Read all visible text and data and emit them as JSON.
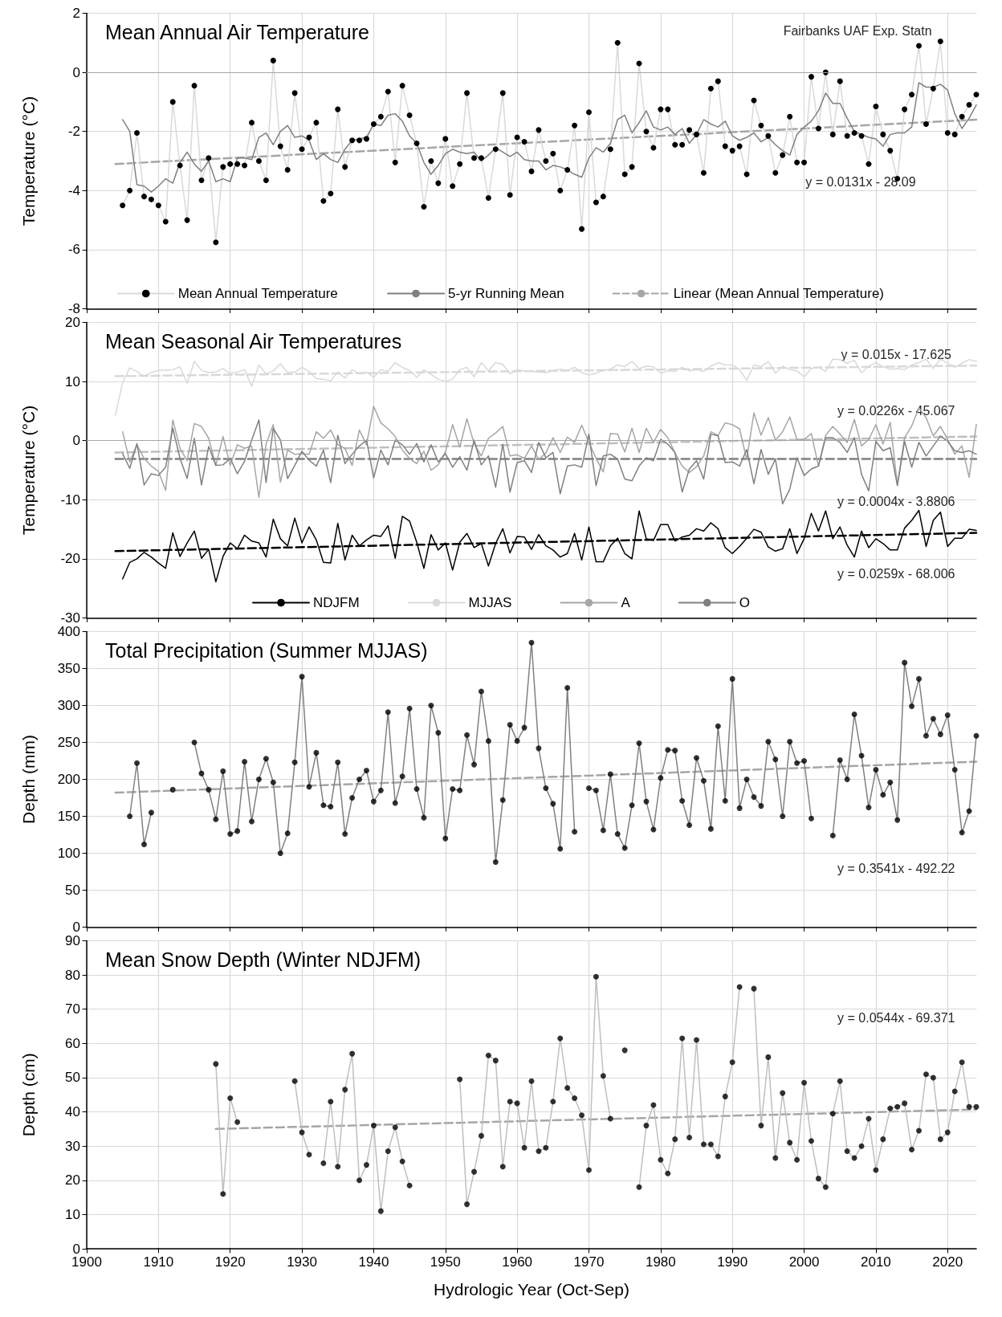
{
  "chart_data": [
    {
      "type": "line",
      "title": "Mean Annual Air Temperature",
      "ylabel": "Temperature (°C)",
      "xlim": [
        1900,
        2024
      ],
      "xticks": [
        1900,
        1910,
        1920,
        1930,
        1940,
        1950,
        1960,
        1970,
        1980,
        1990,
        2000,
        2010,
        2020
      ],
      "ylim": [
        -8,
        2
      ],
      "yticks": [
        -8,
        -6,
        -4,
        -2,
        0,
        2
      ],
      "grid": true,
      "tick_labels": "y",
      "legend": "bottom",
      "marker": "circle",
      "ref_lines": [
        {
          "axis": "y",
          "value": 0,
          "color": "#a6a6a6"
        }
      ],
      "annotations": [
        "Fairbanks UAF Exp. Statn",
        "y = 0.0131x - 28.09"
      ],
      "x": [
        1905,
        1906,
        1907,
        1908,
        1909,
        1910,
        1911,
        1912,
        1913,
        1914,
        1915,
        1916,
        1917,
        1918,
        1919,
        1920,
        1921,
        1922,
        1923,
        1924,
        1925,
        1926,
        1927,
        1928,
        1929,
        1930,
        1931,
        1932,
        1933,
        1934,
        1935,
        1936,
        1937,
        1938,
        1939,
        1940,
        1941,
        1942,
        1943,
        1944,
        1945,
        1946,
        1947,
        1948,
        1949,
        1950,
        1951,
        1952,
        1953,
        1954,
        1955,
        1956,
        1957,
        1958,
        1959,
        1960,
        1961,
        1962,
        1963,
        1964,
        1965,
        1966,
        1967,
        1968,
        1969,
        1970,
        1971,
        1972,
        1973,
        1974,
        1975,
        1976,
        1977,
        1978,
        1979,
        1980,
        1981,
        1982,
        1983,
        1984,
        1985,
        1986,
        1987,
        1988,
        1989,
        1990,
        1991,
        1992,
        1993,
        1994,
        1995,
        1996,
        1997,
        1998,
        1999,
        2000,
        2001,
        2002,
        2003,
        2004,
        2005,
        2006,
        2007,
        2008,
        2009,
        2010,
        2011,
        2012,
        2013,
        2014,
        2015,
        2016,
        2017,
        2018,
        2019,
        2020,
        2021,
        2022,
        2023,
        2024
      ],
      "series": [
        {
          "name": "Mean Annual Temperature",
          "color": "#d9d9d9",
          "values": [
            -4.5,
            -4.0,
            -2.05,
            -4.2,
            -4.3,
            -4.5,
            -5.05,
            -1.0,
            -3.15,
            -5.0,
            -0.45,
            -3.65,
            -2.9,
            -5.75,
            -3.2,
            -3.1,
            -3.1,
            -3.15,
            -1.7,
            -3.0,
            -3.65,
            0.4,
            -2.5,
            -3.3,
            -0.7,
            -2.6,
            -2.2,
            -1.7,
            -4.35,
            -4.1,
            -1.25,
            -3.2,
            -2.3,
            -2.3,
            -2.25,
            -1.75,
            -1.5,
            -0.65,
            -3.05,
            -0.45,
            -1.45,
            -2.4,
            -4.55,
            -3.0,
            -3.75,
            -2.25,
            -3.85,
            -3.1,
            -0.7,
            -2.9,
            -2.9,
            -4.25,
            -2.6,
            -0.7,
            -4.15,
            -2.2,
            -2.35,
            -3.35,
            -1.95,
            -3.0,
            -2.75,
            -4.0,
            -3.3,
            -1.8,
            -5.3,
            -1.35,
            -4.4,
            -4.2,
            -2.6,
            1.0,
            -3.45,
            -3.2,
            0.3,
            -2.0,
            -2.55,
            -1.25,
            -1.25,
            -2.45,
            -2.45,
            -1.95,
            -2.1,
            -3.4,
            -0.55,
            -0.3,
            -2.5,
            -2.65,
            -2.5,
            -3.45,
            -0.95,
            -1.8,
            -2.15,
            -3.4,
            -2.8,
            -1.5,
            -3.05,
            -3.05,
            -0.15,
            -1.9,
            0.0,
            -2.1,
            -0.3,
            -2.15,
            -2.05,
            -2.15,
            -3.1,
            -1.15,
            -2.1,
            -2.65,
            -3.6,
            -1.25,
            -0.75,
            0.9,
            -1.75,
            -0.55,
            1.05,
            -2.05,
            -2.1,
            -1.5,
            -1.1,
            -0.75
          ]
        },
        {
          "name": "5-yr Running Mean",
          "color": "#808080",
          "marker": "none",
          "values": [
            -1.6,
            -2.0,
            -3.8,
            -3.85,
            -4.05,
            -3.85,
            -3.6,
            -3.75,
            -3.05,
            -2.7,
            -3.1,
            -3.35,
            -3.0,
            -3.7,
            -3.6,
            -3.7,
            -2.9,
            -2.9,
            -2.95,
            -2.2,
            -2.05,
            -2.45,
            -2.0,
            -1.8,
            -2.2,
            -2.15,
            -2.3,
            -2.95,
            -2.75,
            -2.95,
            -3.05,
            -2.6,
            -2.3,
            -2.25,
            -2.2,
            -1.75,
            -1.8,
            -1.45,
            -1.4,
            -1.65,
            -2.15,
            -2.4,
            -3.05,
            -3.45,
            -3.15,
            -2.75,
            -2.6,
            -2.7,
            -2.75,
            -2.7,
            -3.0,
            -2.8,
            -2.55,
            -2.7,
            -2.85,
            -2.7,
            -2.95,
            -3.0,
            -3.0,
            -3.3,
            -3.15,
            -3.2,
            -3.3,
            -3.45,
            -3.55,
            -2.9,
            -2.55,
            -2.7,
            -2.4,
            -1.6,
            -1.45,
            -2.05,
            -1.7,
            -1.3,
            -1.85,
            -1.95,
            -1.85,
            -2.1,
            -1.9,
            -2.4,
            -2.1,
            -1.6,
            -1.75,
            -1.85,
            -1.65,
            -2.15,
            -2.3,
            -2.2,
            -2.05,
            -2.35,
            -2.2,
            -2.45,
            -2.65,
            -2.8,
            -2.1,
            -1.85,
            -1.65,
            -1.3,
            -0.7,
            -1.05,
            -1.05,
            -1.55,
            -2.0,
            -2.1,
            -2.2,
            -2.25,
            -2.5,
            -2.1,
            -2.05,
            -2.05,
            -1.85,
            -0.35,
            -0.5,
            -0.5,
            -0.4,
            -0.6,
            -1.4,
            -1.9,
            -1.55,
            -1.1
          ]
        },
        {
          "name": "Linear (Mean Annual Temperature)",
          "color": "#a6a6a6",
          "marker": "none",
          "line_style": "dashed",
          "x": [
            1904,
            2024
          ],
          "values": [
            -3.1,
            -1.6
          ]
        }
      ]
    },
    {
      "type": "line",
      "title": "Mean Seasonal Air Temperatures",
      "ylabel": "Temperature (°C)",
      "xlim": [
        1900,
        2024
      ],
      "xticks": [
        1900,
        1910,
        1920,
        1930,
        1940,
        1950,
        1960,
        1970,
        1980,
        1990,
        2000,
        2010,
        2020
      ],
      "ylim": [
        -30,
        20
      ],
      "yticks": [
        -30,
        -20,
        -10,
        0,
        10,
        20
      ],
      "grid": true,
      "tick_labels": "y",
      "legend": "bottom",
      "ref_lines": [
        {
          "axis": "y",
          "value": 0,
          "color": "#a6a6a6"
        }
      ],
      "annotations": [
        "y = 0.015x - 17.625",
        "y = 0.0226x - 45.067",
        "y = 0.0004x - 3.8806",
        "y = 0.0259x - 68.006"
      ],
      "x": [
        1904,
        1905,
        1906,
        1907,
        1908,
        1909,
        1910,
        1911,
        1912,
        1913,
        1914,
        1915,
        1916,
        1917,
        1918,
        1919,
        1920,
        1921,
        1922,
        1923,
        1924,
        1925,
        1926,
        1927,
        1928,
        1929,
        1930,
        1931,
        1932,
        1933,
        1934,
        1935,
        1936,
        1937,
        1938,
        1939,
        1940,
        1941,
        1942,
        1943,
        1944,
        1945,
        1946,
        1947,
        1948,
        1949,
        1950,
        1951,
        1952,
        1953,
        1954,
        1955,
        1956,
        1957,
        1958,
        1959,
        1960,
        1961,
        1962,
        1963,
        1964,
        1965,
        1966,
        1967,
        1968,
        1969,
        1970,
        1971,
        1972,
        1973,
        1974,
        1975,
        1976,
        1977,
        1978,
        1979,
        1980,
        1981,
        1982,
        1983,
        1984,
        1985,
        1986,
        1987,
        1988,
        1989,
        1990,
        1991,
        1992,
        1993,
        1994,
        1995,
        1996,
        1997,
        1998,
        1999,
        2000,
        2001,
        2002,
        2003,
        2004,
        2005,
        2006,
        2007,
        2008,
        2009,
        2010,
        2011,
        2012,
        2013,
        2014,
        2015,
        2016,
        2017,
        2018,
        2019,
        2020,
        2021,
        2022,
        2023,
        2024
      ],
      "series": [
        {
          "name": "NDJFM",
          "color": "#000000",
          "values": [
            null,
            -23.4,
            -20.6,
            -20.0,
            -18.9,
            -19.7,
            -20.7,
            -21.6,
            -15.6,
            -19.6,
            -17.3,
            -15.3,
            -19.9,
            -18.4,
            -23.9,
            -19.6,
            -17.3,
            -18.3,
            -16.0,
            -17.0,
            -17.3,
            -19.7,
            -13.3,
            -16.6,
            -17.8,
            -13.1,
            -17.3,
            -14.6,
            -16.8,
            -20.6,
            -20.7,
            -14.0,
            -20.2,
            -16.0,
            -17.8,
            -16.8,
            -16.0,
            -16.2,
            -14.4,
            -19.9,
            -12.8,
            -13.6,
            -17.2,
            -21.6,
            -15.9,
            -18.5,
            -17.3,
            -21.9,
            -17.2,
            -15.7,
            -18.1,
            -17.4,
            -21.2,
            -17.4,
            -14.9,
            -19.0,
            -16.2,
            -16.3,
            -18.4,
            -15.9,
            -17.8,
            -18.5,
            -19.7,
            -19.1,
            -15.7,
            -20.2,
            -14.6,
            -20.5,
            -20.5,
            -17.8,
            -16.5,
            -19.1,
            -20.0,
            -11.9,
            -16.6,
            -16.9,
            -14.2,
            -14.2,
            -17.0,
            -16.3,
            -16.0,
            -14.9,
            -15.3,
            -13.9,
            -14.9,
            -18.1,
            -19.1,
            -17.9,
            -16.5,
            -15.0,
            -15.5,
            -18.0,
            -18.7,
            -18.3,
            -14.9,
            -19.1,
            -16.6,
            -12.3,
            -15.3,
            -11.9,
            -16.6,
            -14.6,
            -17.7,
            -19.7,
            -15.3,
            -18.1,
            -16.6,
            -17.4,
            -18.5,
            -18.5,
            -14.8,
            -13.5,
            -11.8,
            -17.9,
            -13.5,
            -12.1,
            -17.9,
            -16.5,
            -16.5,
            -15.0,
            -15.2
          ]
        },
        {
          "name": "MJJAS",
          "color": "#d9d9d9",
          "values": [
            4.3,
            9.8,
            12.3,
            11.7,
            10.9,
            11.5,
            11.9,
            11.9,
            12.0,
            12.5,
            9.7,
            13.4,
            11.9,
            11.5,
            11.6,
            12.2,
            11.3,
            11.6,
            12.0,
            9.2,
            12.8,
            11.3,
            11.8,
            13.0,
            11.5,
            11.6,
            12.4,
            11.7,
            10.5,
            10.4,
            10.1,
            11.6,
            10.6,
            12.0,
            11.3,
            11.6,
            10.7,
            12.0,
            11.7,
            13.2,
            12.4,
            11.9,
            10.7,
            12.0,
            11.2,
            10.4,
            10.0,
            10.4,
            12.0,
            12.4,
            10.8,
            13.2,
            11.8,
            13.2,
            12.9,
            11.3,
            12.0,
            11.8,
            11.7,
            11.6,
            11.5,
            11.8,
            12.1,
            11.8,
            12.4,
            11.5,
            11.1,
            11.4,
            11.9,
            12.1,
            12.8,
            12.5,
            13.4,
            12.2,
            12.6,
            12.5,
            11.4,
            11.8,
            11.7,
            12.4,
            11.8,
            12.0,
            11.7,
            12.6,
            13.2,
            12.8,
            12.8,
            12.0,
            10.2,
            12.8,
            12.5,
            13.4,
            11.4,
            12.6,
            12.0,
            11.8,
            10.8,
            12.2,
            12.4,
            11.7,
            13.8,
            13.7,
            13.1,
            13.6,
            11.5,
            12.6,
            13.2,
            12.5,
            12.1,
            12.2,
            12.0,
            12.8,
            13.2,
            13.8,
            12.2,
            13.8,
            13.1,
            12.4,
            13.1,
            13.7,
            13.4
          ]
        },
        {
          "name": "A",
          "color": "#a6a6a6",
          "values": [
            null,
            1.5,
            -3.6,
            -0.7,
            -3.0,
            -4.3,
            -5.2,
            -8.4,
            3.5,
            -1.3,
            -3.4,
            2.9,
            2.4,
            0.4,
            -4.2,
            0.7,
            -4.2,
            -0.7,
            -1.3,
            -0.9,
            -9.6,
            -0.6,
            2.7,
            -7.0,
            -1.6,
            -2.3,
            -2.2,
            -2.3,
            1.5,
            0.4,
            1.8,
            -0.7,
            -1.3,
            -4.2,
            1.8,
            -0.7,
            5.8,
            3.0,
            2.0,
            0.7,
            -1.6,
            -3.0,
            -3.9,
            -1.8,
            -5.0,
            -4.1,
            -1.9,
            2.7,
            -1.1,
            3.7,
            -0.5,
            -2.6,
            0.4,
            1.3,
            2.4,
            -2.6,
            -2.4,
            -3.0,
            -0.9,
            -3.2,
            -2.1,
            0.5,
            -2.0,
            0.6,
            -0.3,
            2.6,
            -0.3,
            -3.0,
            -5.3,
            1.2,
            1.1,
            -1.9,
            2.1,
            -2.0,
            2.1,
            -0.3,
            1.9,
            0.5,
            -2.1,
            -4.3,
            -5.4,
            -4.4,
            -2.6,
            1.5,
            0.9,
            3.0,
            2.7,
            2.0,
            -3.2,
            4.7,
            0.9,
            3.9,
            0.1,
            1.5,
            4.0,
            0.2,
            0.2,
            1.2,
            -4.3,
            0.9,
            2.4,
            1.1,
            -0.3,
            3.6,
            -0.9,
            0.2,
            2.7,
            -0.6,
            3.1,
            -7.5,
            0.5,
            2.5,
            5.5,
            3.9,
            0.8,
            2.4,
            0.2,
            -2.3,
            -0.9,
            -6.2,
            2.7
          ]
        },
        {
          "name": "O",
          "color": "#808080",
          "values": [
            null,
            -2.2,
            -4.7,
            -0.5,
            -7.5,
            -5.6,
            -5.9,
            -4.5,
            2.1,
            -3.0,
            -6.4,
            0.4,
            -7.5,
            -1.0,
            -4.2,
            -4.1,
            -3.0,
            -5.6,
            -3.5,
            0.1,
            3.5,
            -7.1,
            2.1,
            0.1,
            -6.4,
            -4.2,
            -1.8,
            -3.3,
            -4.3,
            -1.6,
            -7.1,
            0.9,
            -3.9,
            -2.3,
            -0.9,
            0.1,
            -6.3,
            -1.6,
            -4.1,
            0.1,
            -0.7,
            -2.3,
            -0.5,
            -3.6,
            -0.7,
            -3.6,
            -2.2,
            -4.5,
            -2.7,
            -5.0,
            0.1,
            -4.1,
            -2.6,
            -7.9,
            -0.6,
            -8.7,
            -3.7,
            -3.4,
            -5.4,
            -0.3,
            -2.9,
            -2.0,
            -9.0,
            -4.3,
            -4.1,
            -4.5,
            1.1,
            -7.6,
            -2.6,
            -2.3,
            -3.1,
            -6.5,
            -6.8,
            -4.3,
            -2.9,
            -3.4,
            0.2,
            -0.6,
            -2.0,
            -8.7,
            -4.8,
            -3.4,
            -6.5,
            1.1,
            0.8,
            -3.7,
            -3.6,
            -4.3,
            -1.5,
            -7.3,
            -1.5,
            -5.7,
            -3.1,
            -10.7,
            -8.2,
            -2.9,
            -5.9,
            -4.8,
            -4.3,
            0.5,
            0.5,
            -0.3,
            -2.0,
            0.5,
            -5.7,
            -8.5,
            -0.1,
            -1.7,
            -1.2,
            -7.6,
            -0.1,
            -4.5,
            -0.3,
            -2.6,
            -0.9,
            0.8,
            -0.1,
            -1.7,
            -2.0,
            -1.7,
            -2.3
          ]
        },
        {
          "color": "#d9d9d9",
          "line_style": "dashed",
          "x": [
            1904,
            2024
          ],
          "values": [
            10.9,
            12.7
          ]
        },
        {
          "color": "#bfbfbf",
          "line_style": "dashed",
          "x": [
            1904,
            2024
          ],
          "values": [
            -2.0,
            0.7
          ]
        },
        {
          "color": "#808080",
          "line_style": "dashed",
          "x": [
            1904,
            2024
          ],
          "values": [
            -3.1,
            -3.1
          ]
        },
        {
          "color": "#000000",
          "line_style": "dashed",
          "x": [
            1904,
            2024
          ],
          "values": [
            -18.7,
            -15.6
          ]
        }
      ]
    },
    {
      "type": "line",
      "title": "Total Precipitation (Summer MJJAS)",
      "ylabel": "Depth (mm)",
      "xlim": [
        1900,
        2024
      ],
      "xticks": [
        1900,
        1910,
        1920,
        1930,
        1940,
        1950,
        1960,
        1970,
        1980,
        1990,
        2000,
        2010,
        2020
      ],
      "ylim": [
        0,
        400
      ],
      "yticks": [
        0,
        50,
        100,
        150,
        200,
        250,
        300,
        350,
        400
      ],
      "grid": true,
      "tick_labels": "y",
      "marker": "circle",
      "annotations": [
        "y = 0.3541x - 492.22"
      ],
      "x": [
        1906,
        1907,
        1908,
        1909,
        1910,
        1911,
        1912,
        1913,
        1914,
        1915,
        1916,
        1917,
        1918,
        1919,
        1920,
        1921,
        1922,
        1923,
        1924,
        1925,
        1926,
        1927,
        1928,
        1929,
        1930,
        1931,
        1932,
        1933,
        1934,
        1935,
        1936,
        1937,
        1938,
        1939,
        1940,
        1941,
        1942,
        1943,
        1944,
        1945,
        1946,
        1947,
        1948,
        1949,
        1950,
        1951,
        1952,
        1953,
        1954,
        1955,
        1956,
        1957,
        1958,
        1959,
        1960,
        1961,
        1962,
        1963,
        1964,
        1965,
        1966,
        1967,
        1968,
        1969,
        1970,
        1971,
        1972,
        1973,
        1974,
        1975,
        1976,
        1977,
        1978,
        1979,
        1980,
        1981,
        1982,
        1983,
        1984,
        1985,
        1986,
        1987,
        1988,
        1989,
        1990,
        1991,
        1992,
        1993,
        1994,
        1995,
        1996,
        1997,
        1998,
        1999,
        2000,
        2001,
        2002,
        2003,
        2004,
        2005,
        2006,
        2007,
        2008,
        2009,
        2010,
        2011,
        2012,
        2013,
        2014,
        2015,
        2016,
        2017,
        2018,
        2019,
        2020,
        2021,
        2022,
        2023,
        2024
      ],
      "series": [
        {
          "color": "#808080",
          "marker": "none",
          "values": [
            150,
            222,
            112,
            155,
            null,
            null,
            null,
            null,
            null,
            250,
            208,
            186,
            146,
            211,
            126,
            130,
            224,
            143,
            200,
            228,
            196,
            100,
            127,
            223,
            339,
            190,
            236,
            165,
            163,
            223,
            126,
            175,
            200,
            212,
            170,
            185,
            291,
            168,
            204,
            296,
            187,
            148,
            300,
            263,
            120,
            187,
            185,
            260,
            220,
            319,
            252,
            88,
            172,
            274,
            252,
            270,
            385,
            242,
            188,
            167,
            106,
            324,
            129,
            null,
            188,
            185,
            131,
            207,
            126,
            107,
            165,
            249,
            170,
            132,
            202,
            240,
            239,
            171,
            138,
            229,
            198,
            133,
            272,
            171,
            336,
            161,
            200,
            176,
            164,
            251,
            227,
            150,
            251,
            222,
            225,
            147,
            null,
            null,
            124,
            226,
            200,
            288,
            232,
            162,
            213,
            179,
            196,
            145,
            358,
            299,
            336,
            259,
            282,
            261,
            287,
            213,
            128,
            157,
            259
          ]
        },
        {
          "type": "scatter",
          "color": "#000000",
          "values": [
            150,
            222,
            112,
            155,
            null,
            null,
            186,
            null,
            null,
            250,
            208,
            186,
            146,
            211,
            126,
            130,
            224,
            143,
            200,
            228,
            196,
            100,
            127,
            223,
            339,
            190,
            236,
            165,
            163,
            223,
            126,
            175,
            200,
            212,
            170,
            185,
            291,
            168,
            204,
            296,
            187,
            148,
            300,
            263,
            120,
            187,
            185,
            260,
            220,
            319,
            252,
            88,
            172,
            274,
            252,
            270,
            385,
            242,
            188,
            167,
            106,
            324,
            129,
            null,
            188,
            185,
            131,
            207,
            126,
            107,
            165,
            249,
            170,
            132,
            202,
            240,
            239,
            171,
            138,
            229,
            198,
            133,
            272,
            171,
            336,
            161,
            200,
            176,
            164,
            251,
            227,
            150,
            251,
            222,
            225,
            147,
            null,
            null,
            124,
            226,
            200,
            288,
            232,
            162,
            213,
            179,
            196,
            145,
            358,
            299,
            336,
            259,
            282,
            261,
            287,
            213,
            128,
            157,
            259
          ]
        },
        {
          "color": "#a6a6a6",
          "marker": "none",
          "line_style": "dashed",
          "x": [
            1904,
            2024
          ],
          "values": [
            182,
            224
          ]
        }
      ]
    },
    {
      "type": "line",
      "title": "Mean Snow Depth (Winter NDJFM)",
      "xlabel": "Hydrologic Year (Oct-Sep)",
      "ylabel": "Depth (cm)",
      "xlim": [
        1900,
        2024
      ],
      "xticks": [
        1900,
        1910,
        1920,
        1930,
        1940,
        1950,
        1960,
        1970,
        1980,
        1990,
        2000,
        2010,
        2020
      ],
      "ylim": [
        0,
        90
      ],
      "yticks": [
        0,
        10,
        20,
        30,
        40,
        50,
        60,
        70,
        80,
        90
      ],
      "grid": true,
      "marker": "circle",
      "annotations": [
        "y = 0.0544x - 69.371"
      ],
      "x": [
        1918,
        1919,
        1920,
        1921,
        1922,
        1923,
        1924,
        1925,
        1926,
        1927,
        1928,
        1929,
        1930,
        1931,
        1932,
        1933,
        1934,
        1935,
        1936,
        1937,
        1938,
        1939,
        1940,
        1941,
        1942,
        1943,
        1944,
        1945,
        1946,
        1947,
        1948,
        1949,
        1950,
        1951,
        1952,
        1953,
        1954,
        1955,
        1956,
        1957,
        1958,
        1959,
        1960,
        1961,
        1962,
        1963,
        1964,
        1965,
        1966,
        1967,
        1968,
        1969,
        1970,
        1971,
        1972,
        1973,
        1974,
        1975,
        1976,
        1977,
        1978,
        1979,
        1980,
        1981,
        1982,
        1983,
        1984,
        1985,
        1986,
        1987,
        1988,
        1989,
        1990,
        1991,
        1992,
        1993,
        1994,
        1995,
        1996,
        1997,
        1998,
        1999,
        2000,
        2001,
        2002,
        2003,
        2004,
        2005,
        2006,
        2007,
        2008,
        2009,
        2010,
        2011,
        2012,
        2013,
        2014,
        2015,
        2016,
        2017,
        2018,
        2019,
        2020,
        2021,
        2022,
        2023,
        2024
      ],
      "series": [
        {
          "color": "#bfbfbf",
          "marker": "none",
          "values": [
            54,
            16,
            44,
            37,
            null,
            null,
            null,
            null,
            null,
            null,
            null,
            49,
            34,
            27.5,
            null,
            25,
            43,
            24,
            46.5,
            57,
            20,
            24.5,
            36,
            11,
            28.5,
            35.5,
            25.5,
            18.5,
            null,
            null,
            null,
            null,
            null,
            null,
            49.5,
            13,
            22.5,
            33,
            56.5,
            55,
            24,
            43,
            42.5,
            29.5,
            49,
            28.5,
            29.5,
            43,
            61.5,
            47,
            44,
            39,
            23,
            79.5,
            50.5,
            38,
            null,
            null,
            null,
            18,
            36,
            42,
            26,
            22,
            32,
            61.5,
            32.5,
            61,
            30.5,
            30.5,
            27,
            44.5,
            54.5,
            76.5,
            null,
            76,
            36,
            56,
            26.5,
            45.5,
            31,
            26,
            48.5,
            31.5,
            20.5,
            18,
            39.5,
            49,
            28.5,
            26.5,
            30,
            38,
            23,
            32,
            41,
            41.5,
            42.5,
            29,
            34.5,
            51,
            50,
            32,
            34,
            46,
            54.5,
            41.5,
            41.5
          ]
        },
        {
          "type": "scatter",
          "color": "#000000",
          "values": [
            54,
            16,
            44,
            37,
            null,
            null,
            null,
            null,
            null,
            null,
            null,
            49,
            34,
            27.5,
            null,
            25,
            43,
            24,
            46.5,
            57,
            20,
            24.5,
            36,
            11,
            28.5,
            35.5,
            25.5,
            18.5,
            null,
            null,
            null,
            null,
            null,
            null,
            49.5,
            13,
            22.5,
            33,
            56.5,
            55,
            24,
            43,
            42.5,
            29.5,
            49,
            28.5,
            29.5,
            43,
            61.5,
            47,
            44,
            39,
            23,
            79.5,
            50.5,
            38,
            null,
            58,
            null,
            18,
            36,
            42,
            26,
            22,
            32,
            61.5,
            32.5,
            61,
            30.5,
            30.5,
            27,
            44.5,
            54.5,
            76.5,
            null,
            76,
            36,
            56,
            26.5,
            45.5,
            31,
            26,
            48.5,
            31.5,
            20.5,
            18,
            39.5,
            49,
            28.5,
            26.5,
            30,
            38,
            23,
            32,
            41,
            41.5,
            42.5,
            29,
            34.5,
            51,
            50,
            32,
            34,
            46,
            54.5,
            41.5,
            41.5
          ]
        },
        {
          "color": "#a6a6a6",
          "marker": "none",
          "line_style": "dashed",
          "x": [
            1918,
            2024
          ],
          "values": [
            35,
            40.7
          ]
        }
      ]
    }
  ]
}
